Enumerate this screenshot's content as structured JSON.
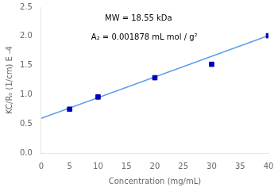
{
  "chart_data": {
    "type": "scatter",
    "xlabel": "Concentration (mg/mL)",
    "ylabel": "KC/R₀ (1/cm) E -4",
    "annotations": [
      "MW = 18.55 kDa",
      "A₂ = 0.001878 mL mol / g²"
    ],
    "series": [
      {
        "type": "line",
        "color": "#5599ee",
        "line_style": "solid",
        "x": [
          0,
          40
        ],
        "values": [
          0.594,
          2.01
        ]
      },
      {
        "type": "scatter",
        "color": "#0000bb",
        "marker": "square",
        "x": [
          5,
          10,
          20,
          30,
          40
        ],
        "values": [
          0.75,
          0.96,
          1.29,
          1.52,
          2.01
        ]
      }
    ],
    "xlim": [
      0,
      40
    ],
    "ylim": [
      0.0,
      2.5
    ],
    "xticks": [
      0,
      5,
      10,
      15,
      20,
      25,
      30,
      35,
      40
    ],
    "yticks": [
      {
        "value": 0.0,
        "label": "0.0"
      },
      0.5,
      {
        "value": 1.0,
        "label": "1.0"
      },
      1.5,
      {
        "value": 2.0,
        "label": "2.0"
      },
      2.5
    ],
    "grid": false
  }
}
